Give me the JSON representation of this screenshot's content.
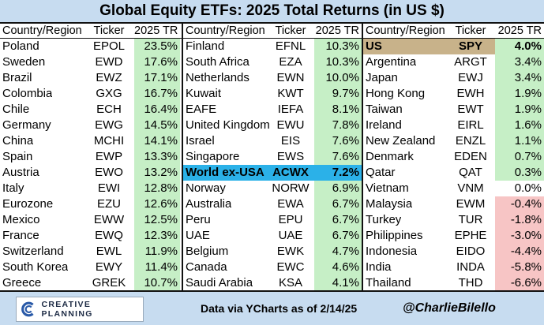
{
  "title": "Global Equity ETFs: 2025 Total Returns (in US $)",
  "headers": {
    "name": "Country/Region",
    "ticker": "Ticker",
    "ret": "2025 TR"
  },
  "colors": {
    "positive": "#c6efc6",
    "negative": "#f7c5c5",
    "world_highlight": "#2bb1e8",
    "us_highlight": "#c8b28a",
    "header_bg": "#c7dcf0"
  },
  "chart_data": {
    "type": "table",
    "title": "Global Equity ETFs: 2025 Total Returns (in US $)",
    "columns": [
      "Country/Region",
      "Ticker",
      "2025 TR"
    ],
    "columns_data": [
      [
        {
          "name": "Poland",
          "ticker": "EPOL",
          "ret": "23.5%",
          "value": 23.5
        },
        {
          "name": "Sweden",
          "ticker": "EWD",
          "ret": "17.6%",
          "value": 17.6
        },
        {
          "name": "Brazil",
          "ticker": "EWZ",
          "ret": "17.1%",
          "value": 17.1
        },
        {
          "name": "Colombia",
          "ticker": "GXG",
          "ret": "16.7%",
          "value": 16.7
        },
        {
          "name": "Chile",
          "ticker": "ECH",
          "ret": "16.4%",
          "value": 16.4
        },
        {
          "name": "Germany",
          "ticker": "EWG",
          "ret": "14.5%",
          "value": 14.5
        },
        {
          "name": "China",
          "ticker": "MCHI",
          "ret": "14.1%",
          "value": 14.1
        },
        {
          "name": "Spain",
          "ticker": "EWP",
          "ret": "13.3%",
          "value": 13.3
        },
        {
          "name": "Austria",
          "ticker": "EWO",
          "ret": "13.2%",
          "value": 13.2
        },
        {
          "name": "Italy",
          "ticker": "EWI",
          "ret": "12.8%",
          "value": 12.8
        },
        {
          "name": "Eurozone",
          "ticker": "EZU",
          "ret": "12.6%",
          "value": 12.6
        },
        {
          "name": "Mexico",
          "ticker": "EWW",
          "ret": "12.5%",
          "value": 12.5
        },
        {
          "name": "France",
          "ticker": "EWQ",
          "ret": "12.3%",
          "value": 12.3
        },
        {
          "name": "Switzerland",
          "ticker": "EWL",
          "ret": "11.9%",
          "value": 11.9
        },
        {
          "name": "South Korea",
          "ticker": "EWY",
          "ret": "11.4%",
          "value": 11.4
        },
        {
          "name": "Greece",
          "ticker": "GREK",
          "ret": "10.7%",
          "value": 10.7
        }
      ],
      [
        {
          "name": "Finland",
          "ticker": "EFNL",
          "ret": "10.3%",
          "value": 10.3
        },
        {
          "name": "South Africa",
          "ticker": "EZA",
          "ret": "10.3%",
          "value": 10.3
        },
        {
          "name": "Netherlands",
          "ticker": "EWN",
          "ret": "10.0%",
          "value": 10.0
        },
        {
          "name": "Kuwait",
          "ticker": "KWT",
          "ret": "9.7%",
          "value": 9.7
        },
        {
          "name": "EAFE",
          "ticker": "IEFA",
          "ret": "8.1%",
          "value": 8.1
        },
        {
          "name": "United Kingdom",
          "ticker": "EWU",
          "ret": "7.8%",
          "value": 7.8
        },
        {
          "name": "Israel",
          "ticker": "EIS",
          "ret": "7.6%",
          "value": 7.6
        },
        {
          "name": "Singapore",
          "ticker": "EWS",
          "ret": "7.6%",
          "value": 7.6
        },
        {
          "name": "World ex-USA",
          "ticker": "ACWX",
          "ret": "7.2%",
          "value": 7.2,
          "highlight": "world"
        },
        {
          "name": "Norway",
          "ticker": "NORW",
          "ret": "6.9%",
          "value": 6.9
        },
        {
          "name": "Australia",
          "ticker": "EWA",
          "ret": "6.7%",
          "value": 6.7
        },
        {
          "name": "Peru",
          "ticker": "EPU",
          "ret": "6.7%",
          "value": 6.7
        },
        {
          "name": "UAE",
          "ticker": "UAE",
          "ret": "6.7%",
          "value": 6.7
        },
        {
          "name": "Belgium",
          "ticker": "EWK",
          "ret": "4.7%",
          "value": 4.7
        },
        {
          "name": "Canada",
          "ticker": "EWC",
          "ret": "4.6%",
          "value": 4.6
        },
        {
          "name": "Saudi Arabia",
          "ticker": "KSA",
          "ret": "4.1%",
          "value": 4.1
        }
      ],
      [
        {
          "name": "US",
          "ticker": "SPY",
          "ret": "4.0%",
          "value": 4.0,
          "highlight": "us"
        },
        {
          "name": "Argentina",
          "ticker": "ARGT",
          "ret": "3.4%",
          "value": 3.4
        },
        {
          "name": "Japan",
          "ticker": "EWJ",
          "ret": "3.4%",
          "value": 3.4
        },
        {
          "name": "Hong Kong",
          "ticker": "EWH",
          "ret": "1.9%",
          "value": 1.9
        },
        {
          "name": "Taiwan",
          "ticker": "EWT",
          "ret": "1.9%",
          "value": 1.9
        },
        {
          "name": "Ireland",
          "ticker": "EIRL",
          "ret": "1.6%",
          "value": 1.6
        },
        {
          "name": "New Zealand",
          "ticker": "ENZL",
          "ret": "1.1%",
          "value": 1.1
        },
        {
          "name": "Denmark",
          "ticker": "EDEN",
          "ret": "0.7%",
          "value": 0.7
        },
        {
          "name": "Qatar",
          "ticker": "QAT",
          "ret": "0.3%",
          "value": 0.3
        },
        {
          "name": "Vietnam",
          "ticker": "VNM",
          "ret": "0.0%",
          "value": 0.0
        },
        {
          "name": "Malaysia",
          "ticker": "EWM",
          "ret": "-0.4%",
          "value": -0.4
        },
        {
          "name": "Turkey",
          "ticker": "TUR",
          "ret": "-1.8%",
          "value": -1.8
        },
        {
          "name": "Philippines",
          "ticker": "EPHE",
          "ret": "-3.0%",
          "value": -3.0
        },
        {
          "name": "Indonesia",
          "ticker": "EIDO",
          "ret": "-4.4%",
          "value": -4.4
        },
        {
          "name": "India",
          "ticker": "INDA",
          "ret": "-5.8%",
          "value": -5.8
        },
        {
          "name": "Thailand",
          "ticker": "THD",
          "ret": "-6.6%",
          "value": -6.6
        }
      ]
    ]
  },
  "footer": {
    "logo_text": "CREATIVE PLANNING",
    "source": "Data via YCharts as of 2/14/25",
    "handle": "@CharlieBilello"
  }
}
